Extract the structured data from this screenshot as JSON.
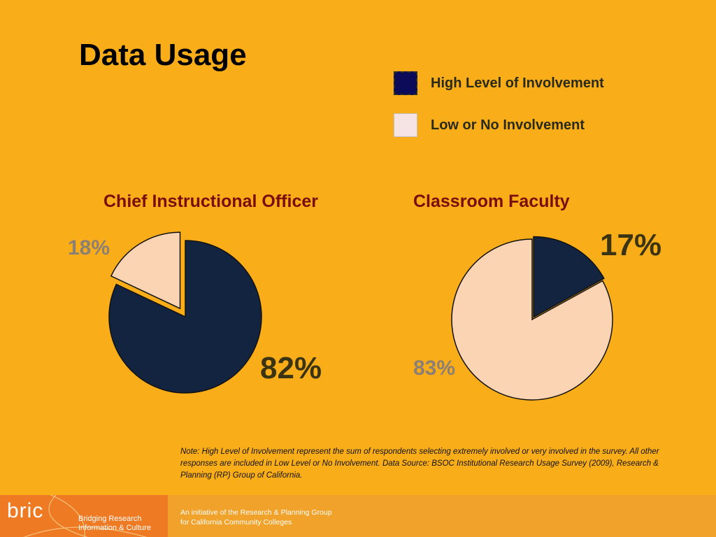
{
  "slide": {
    "title": "Data Usage",
    "note": "Note: High Level of Involvement represent the sum of respondents selecting extremely involved or very involved in the survey. All other responses are included in Low  Level or No Involvement. Data Source: BSOC Institutional Research Usage Survey (2009), Research & Planning (RP)  Group of California."
  },
  "legend": [
    {
      "label": "High Level of Involvement",
      "color": "#0b0b5a"
    },
    {
      "label": "Low or No Involvement",
      "color": "#f6e4e4"
    }
  ],
  "chart_data": [
    {
      "type": "pie",
      "title": "Chief Instructional Officer",
      "categories": [
        "High Level of Involvement",
        "Low or No Involvement"
      ],
      "values": [
        82,
        18
      ],
      "labels": [
        "82%",
        "18%"
      ],
      "colors": [
        "#122440",
        "#fbd5b3"
      ],
      "exploded": "Low or No Involvement"
    },
    {
      "type": "pie",
      "title": "Classroom Faculty",
      "categories": [
        "High Level of Involvement",
        "Low or No Involvement"
      ],
      "values": [
        17,
        83
      ],
      "labels": [
        "17%",
        "83%"
      ],
      "colors": [
        "#122440",
        "#fbd5b3"
      ],
      "exploded": "High Level of Involvement"
    }
  ],
  "footer": {
    "logo": "bric",
    "tagline_line1": "Bridging Research",
    "tagline_line2": "Information & Culture",
    "credit_line1": "An initiative of the Research & Planning Group",
    "credit_line2": "for California Community Colleges"
  }
}
